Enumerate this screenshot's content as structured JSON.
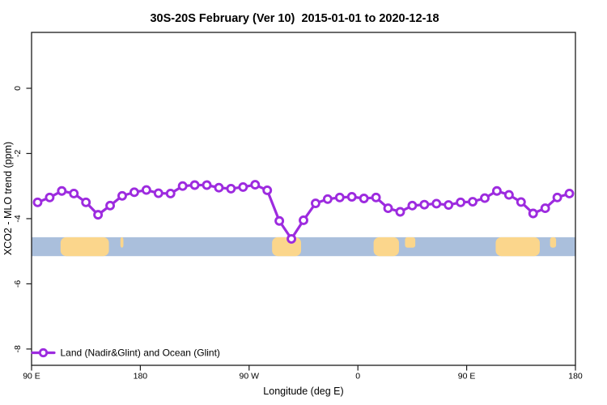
{
  "title": "30S-20S February (Ver 10)  2015-01-01 to 2020-12-18",
  "axes": {
    "x_title": "Longitude (deg E)",
    "y_title": "XCO2 - MLO trend (ppm)"
  },
  "legend": {
    "items": [
      {
        "label": "Land (Nadir&Glint) and Ocean (Glint)",
        "marker": "open-circle-on-line",
        "color": "#9d2bdf"
      }
    ]
  },
  "colors": {
    "series": "#9d2bdf",
    "marker_fill": "#ffffff",
    "ocean_band": "#aabfdc",
    "land_patch": "#fbd68c",
    "axis": "#1b1b1b",
    "background": "#ffffff"
  },
  "chart_data": {
    "type": "line",
    "title": "30S-20S February (Ver 10)  2015-01-01 to 2020-12-18",
    "xlabel": "Longitude (deg E)",
    "ylabel": "XCO2 - MLO trend (ppm)",
    "xlim": [
      90,
      540
    ],
    "ylim": [
      -8.5,
      1.715
    ],
    "grid": false,
    "legend_position": "bottom-left-inside",
    "x_ticks": [
      {
        "value": 90,
        "label": "90 E"
      },
      {
        "value": 180,
        "label": "180"
      },
      {
        "value": 270,
        "label": "90 W"
      },
      {
        "value": 360,
        "label": "0"
      },
      {
        "value": 450,
        "label": "90 E"
      },
      {
        "value": 540,
        "label": "180"
      }
    ],
    "y_ticks": [
      {
        "value": 0,
        "label": "0"
      },
      {
        "value": -2,
        "label": "-2"
      },
      {
        "value": -4,
        "label": "-4"
      },
      {
        "value": -6,
        "label": "-6"
      },
      {
        "value": -8,
        "label": "-8"
      }
    ],
    "series": [
      {
        "name": "Land (Nadir&Glint) and Ocean (Glint)",
        "marker": "open-circle",
        "x": [
          95,
          105,
          115,
          125,
          135,
          145,
          155,
          165,
          175,
          185,
          195,
          205,
          215,
          225,
          235,
          245,
          255,
          265,
          275,
          285,
          295,
          305,
          315,
          325,
          335,
          345,
          355,
          365,
          375,
          385,
          395,
          405,
          415,
          425,
          435,
          445,
          455,
          465,
          475,
          485,
          495,
          505,
          515,
          525,
          535
        ],
        "y": [
          -3.5,
          -3.35,
          -3.15,
          -3.23,
          -3.5,
          -3.88,
          -3.6,
          -3.3,
          -3.19,
          -3.12,
          -3.22,
          -3.23,
          -3.0,
          -2.97,
          -2.97,
          -3.05,
          -3.08,
          -3.03,
          -2.96,
          -3.13,
          -4.07,
          -4.62,
          -4.05,
          -3.53,
          -3.4,
          -3.35,
          -3.33,
          -3.38,
          -3.35,
          -3.68,
          -3.79,
          -3.6,
          -3.57,
          -3.54,
          -3.58,
          -3.5,
          -3.48,
          -3.37,
          -3.15,
          -3.27,
          -3.49,
          -3.84,
          -3.68,
          -3.35,
          -3.23
        ]
      }
    ],
    "map_band": {
      "description": "land-ocean strip along longitude",
      "y_top": -4.57,
      "y_bottom": -5.15,
      "ocean_color": "#aabfdc",
      "land_color": "#fbd68c",
      "land_segments": [
        {
          "from": 114,
          "to": 154
        },
        {
          "from": 163.5,
          "to": 166,
          "partial": true
        },
        {
          "from": 289,
          "to": 313
        },
        {
          "from": 373,
          "to": 394
        },
        {
          "from": 399,
          "to": 407.5,
          "partial": true
        },
        {
          "from": 474,
          "to": 510.5
        },
        {
          "from": 519,
          "to": 524,
          "partial": true
        }
      ]
    }
  }
}
